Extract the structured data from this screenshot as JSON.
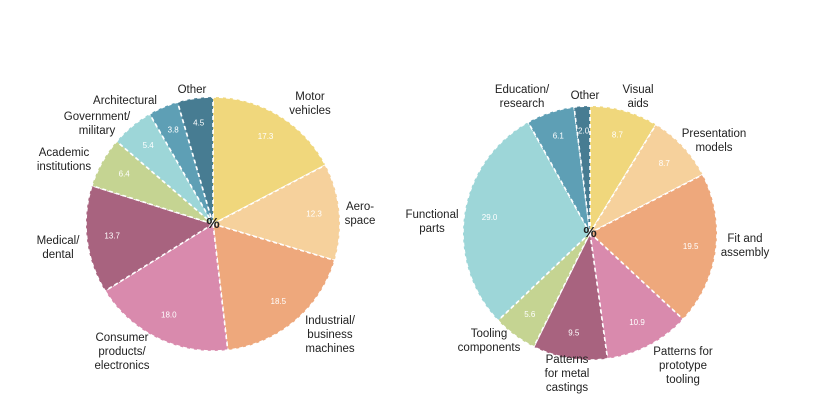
{
  "chart_data": [
    {
      "type": "pie",
      "center_label": "%",
      "slices": [
        {
          "label": [
            "Motor",
            "vehicles"
          ],
          "value": 17.3,
          "value_label": "17.3",
          "color": "#f0d77c"
        },
        {
          "label": [
            "Aero-",
            "space"
          ],
          "value": 12.3,
          "value_label": "12.3",
          "color": "#f6d19c"
        },
        {
          "label": [
            "Industrial/",
            "business",
            "machines"
          ],
          "value": 18.5,
          "value_label": "18.5",
          "color": "#eea87c"
        },
        {
          "label": [
            "Consumer",
            "products/",
            "electronics"
          ],
          "value": 18.0,
          "value_label": "18.0",
          "color": "#d98aad"
        },
        {
          "label": [
            "Medical/",
            "dental"
          ],
          "value": 13.7,
          "value_label": "13.7",
          "color": "#a8637f"
        },
        {
          "label": [
            "Academic",
            "institutions"
          ],
          "value": 6.4,
          "value_label": "6.4",
          "color": "#c5d492"
        },
        {
          "label": [
            "Government/",
            "military"
          ],
          "value": 5.4,
          "value_label": "5.4",
          "color": "#9dd6d8"
        },
        {
          "label": [
            "Architectural"
          ],
          "value": 3.8,
          "value_label": "3.8",
          "color": "#5e9fb5"
        },
        {
          "label": [
            "Other"
          ],
          "value": 4.5,
          "value_label": "4.5",
          "color": "#477c92"
        }
      ]
    },
    {
      "type": "pie",
      "center_label": "%",
      "slices": [
        {
          "label": [
            "Visual",
            "aids"
          ],
          "value": 8.7,
          "value_label": "8.7",
          "color": "#f0d77c"
        },
        {
          "label": [
            "Presentation",
            "models"
          ],
          "value": 8.7,
          "value_label": "8.7",
          "color": "#f6d19c"
        },
        {
          "label": [
            "Fit and",
            "assembly"
          ],
          "value": 19.5,
          "value_label": "19.5",
          "color": "#eea87c"
        },
        {
          "label": [
            "Patterns for",
            "prototype",
            "tooling"
          ],
          "value": 10.9,
          "value_label": "10.9",
          "color": "#d98aad"
        },
        {
          "label": [
            "Patterns",
            "for metal",
            "castings"
          ],
          "value": 9.5,
          "value_label": "9.5",
          "color": "#a8637f"
        },
        {
          "label": [
            "Tooling",
            "components"
          ],
          "value": 5.6,
          "value_label": "5.6",
          "color": "#c5d492"
        },
        {
          "label": [
            "Functional",
            "parts"
          ],
          "value": 29.0,
          "value_label": "29.0",
          "color": "#9dd6d8"
        },
        {
          "label": [
            "Education/",
            "research"
          ],
          "value": 6.1,
          "value_label": "6.1",
          "color": "#5e9fb5"
        },
        {
          "label": [
            "Other"
          ],
          "value": 2.0,
          "value_label": "2.0",
          "color": "#477c92"
        }
      ]
    }
  ]
}
